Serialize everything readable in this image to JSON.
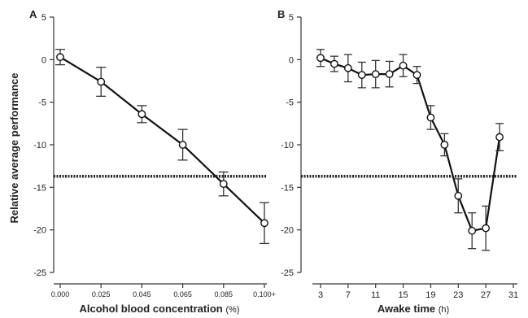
{
  "chart_data": [
    {
      "panel_label": "A",
      "type": "line",
      "categories": [
        "0.000",
        "0.025",
        "0.045",
        "0.065",
        "0.085",
        "0.100+"
      ],
      "values": [
        0.3,
        -2.6,
        -6.4,
        -10.0,
        -14.6,
        -19.2
      ],
      "error": [
        0.9,
        1.7,
        1.0,
        1.8,
        1.4,
        2.4
      ],
      "reference_y": -13.7,
      "xlabel": "Alcohol blood concentration",
      "xunit": "(%)",
      "ylabel": "Relative average performance",
      "ylim": [
        -25,
        5
      ],
      "yticks": [
        "5",
        "0",
        "-5",
        "-10",
        "-15",
        "-20",
        "-25"
      ],
      "grid": false
    },
    {
      "panel_label": "B",
      "type": "line",
      "x": [
        3,
        5,
        7,
        9,
        11,
        13,
        15,
        17,
        19,
        21,
        23,
        25,
        27,
        29
      ],
      "values": [
        0.2,
        -0.5,
        -1.0,
        -1.8,
        -1.7,
        -1.7,
        -0.7,
        -1.8,
        -6.8,
        -10.0,
        -16.0,
        -20.1,
        -19.8,
        -9.1
      ],
      "error": [
        1.0,
        0.9,
        1.6,
        1.5,
        1.6,
        1.5,
        1.3,
        1.0,
        1.4,
        1.3,
        2.0,
        2.1,
        2.6,
        1.6
      ],
      "reference_y": -13.7,
      "xlabel": "Awake time",
      "xunit": "(h)",
      "xlim": [
        3,
        31
      ],
      "xticks": [
        "3",
        "7",
        "11",
        "15",
        "19",
        "23",
        "27",
        "31"
      ],
      "ylabel": "",
      "ylim": [
        -25,
        5
      ],
      "yticks": [
        "5",
        "0",
        "-5",
        "-10",
        "-15",
        "-20",
        "-25"
      ],
      "grid": false
    }
  ]
}
